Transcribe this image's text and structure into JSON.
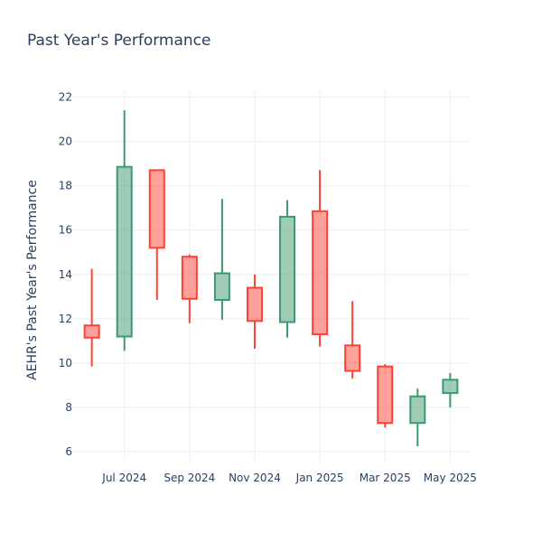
{
  "chart_data": {
    "type": "candlestick",
    "title": "Past Year's Performance",
    "xlabel": "",
    "ylabel": "AEHR's Past Year's Performance",
    "ylim": [
      5.6,
      22.3
    ],
    "yticks": [
      6,
      8,
      10,
      12,
      14,
      16,
      18,
      20,
      22
    ],
    "xticks": [
      {
        "label": "Jul 2024",
        "pos": 1
      },
      {
        "label": "Sep 2024",
        "pos": 3
      },
      {
        "label": "Nov 2024",
        "pos": 5
      },
      {
        "label": "Jan 2025",
        "pos": 7
      },
      {
        "label": "Mar 2025",
        "pos": 9
      },
      {
        "label": "May 2025",
        "pos": 11
      }
    ],
    "xlim": [
      -0.6,
      11.6
    ],
    "grid": true,
    "colors": {
      "increasing": "#3d9970",
      "decreasing": "#ff4136"
    },
    "candles": [
      {
        "pos": 0,
        "open": 11.7,
        "high": 14.25,
        "low": 9.85,
        "close": 11.15
      },
      {
        "pos": 1,
        "open": 11.2,
        "high": 21.4,
        "low": 10.55,
        "close": 18.85
      },
      {
        "pos": 2,
        "open": 18.7,
        "high": 18.7,
        "low": 12.85,
        "close": 15.2
      },
      {
        "pos": 3,
        "open": 14.8,
        "high": 14.9,
        "low": 11.8,
        "close": 12.9
      },
      {
        "pos": 4,
        "open": 12.85,
        "high": 17.4,
        "low": 11.95,
        "close": 14.05
      },
      {
        "pos": 5,
        "open": 13.4,
        "high": 14.0,
        "low": 10.65,
        "close": 11.9
      },
      {
        "pos": 6,
        "open": 11.85,
        "high": 17.35,
        "low": 11.15,
        "close": 16.6
      },
      {
        "pos": 7,
        "open": 16.85,
        "high": 18.7,
        "low": 10.75,
        "close": 11.3
      },
      {
        "pos": 8,
        "open": 10.8,
        "high": 12.8,
        "low": 9.3,
        "close": 9.65
      },
      {
        "pos": 9,
        "open": 9.85,
        "high": 9.95,
        "low": 7.1,
        "close": 7.3
      },
      {
        "pos": 10,
        "open": 7.3,
        "high": 8.85,
        "low": 6.25,
        "close": 8.5
      },
      {
        "pos": 11,
        "open": 8.65,
        "high": 9.55,
        "low": 8.0,
        "close": 9.25
      }
    ]
  }
}
